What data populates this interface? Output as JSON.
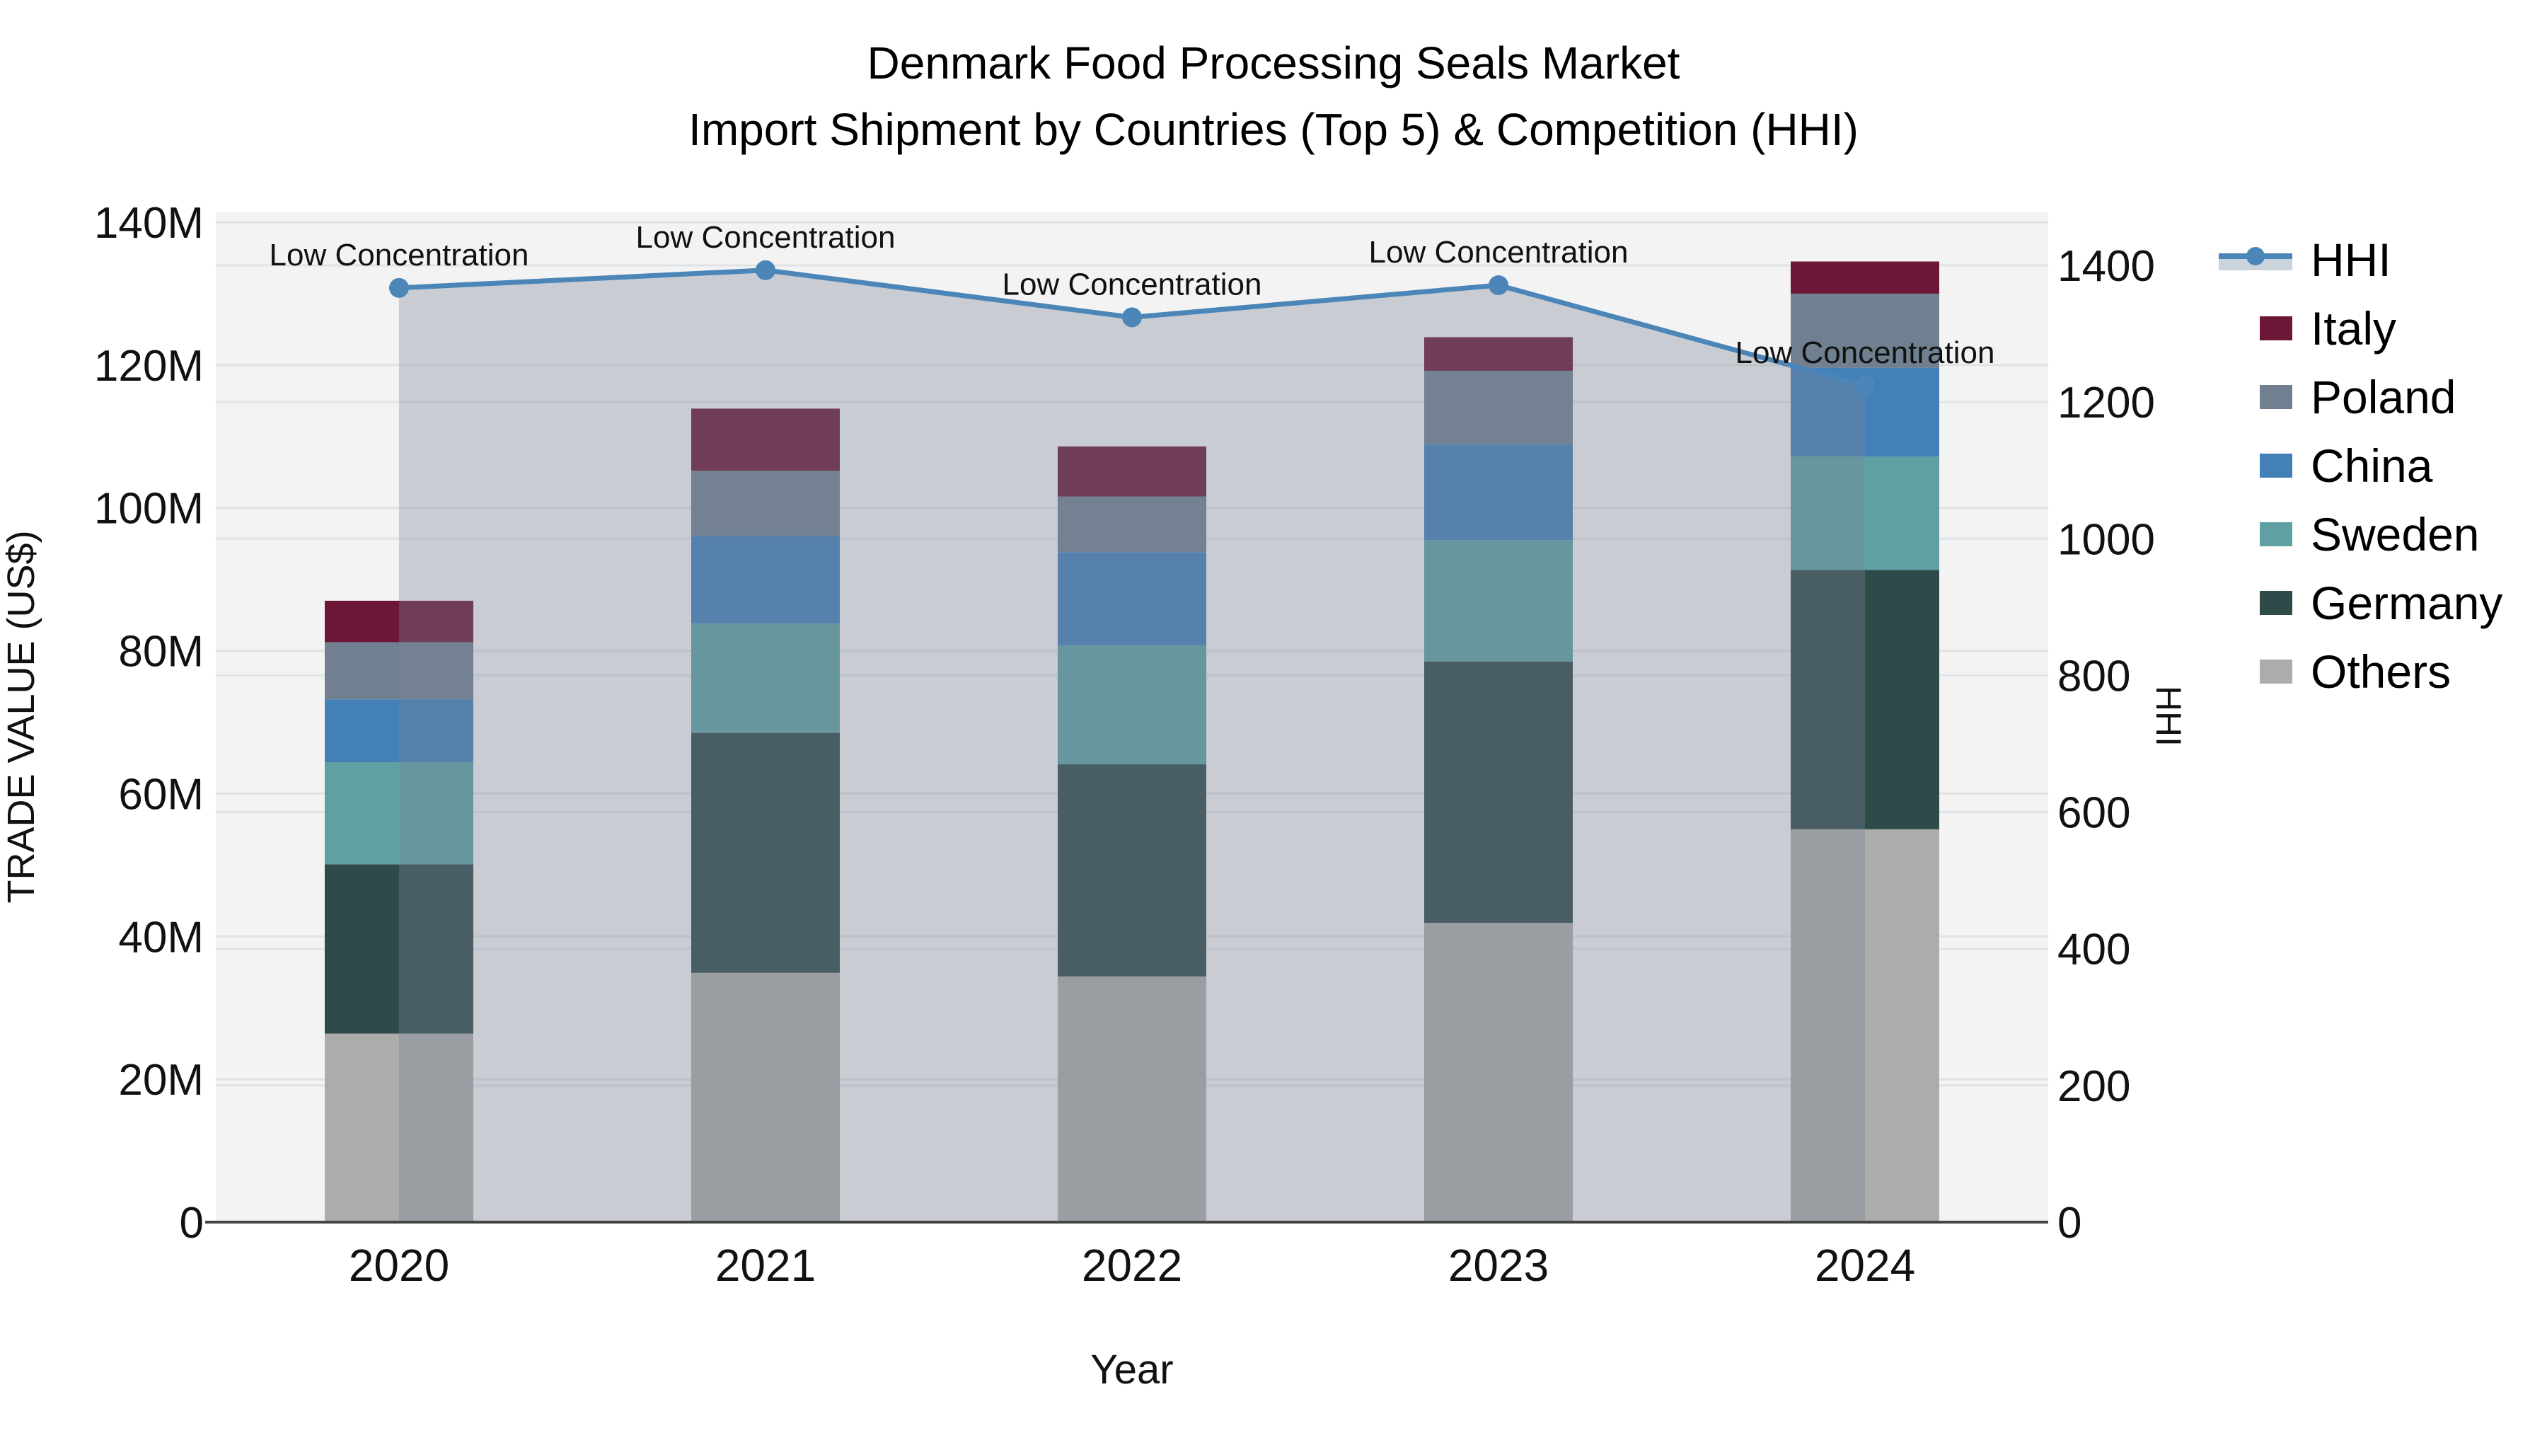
{
  "title": {
    "line1": "Denmark Food Processing Seals Market",
    "line2": "Import Shipment by Countries (Top 5) & Competition (HHI)"
  },
  "chart_data": {
    "type": "stacked-bar+line",
    "categories": [
      "2020",
      "2021",
      "2022",
      "2023",
      "2024"
    ],
    "value_unit": "M US$",
    "series": [
      {
        "name": "Others",
        "color": "#ACACAA",
        "values": [
          26.4,
          34.9,
          34.4,
          41.9,
          55.0
        ]
      },
      {
        "name": "Germany",
        "color": "#2F4B49",
        "values": [
          23.7,
          33.6,
          29.7,
          36.6,
          36.3
        ]
      },
      {
        "name": "Sweden",
        "color": "#5FA0A2",
        "values": [
          14.3,
          15.3,
          16.7,
          17.0,
          15.9
        ]
      },
      {
        "name": "China",
        "color": "#4480B8",
        "values": [
          8.8,
          12.3,
          13.0,
          13.4,
          12.4
        ]
      },
      {
        "name": "Poland",
        "color": "#708090",
        "values": [
          8.0,
          9.1,
          7.8,
          10.3,
          10.4
        ]
      },
      {
        "name": "Italy",
        "color": "#6C1737",
        "values": [
          5.8,
          8.7,
          7.0,
          4.7,
          4.5
        ]
      }
    ],
    "totals": [
      87.0,
      113.9,
      108.6,
      123.9,
      134.5
    ],
    "line_series": {
      "name": "HHI",
      "color": "#4C86B8",
      "area_fill": "#798499",
      "area_opacity": 0.35,
      "values": [
        1367,
        1393,
        1324,
        1371,
        1224
      ]
    },
    "annotations": [
      {
        "year": "2020",
        "text": "Low Concentration"
      },
      {
        "year": "2021",
        "text": "Low Concentration"
      },
      {
        "year": "2022",
        "text": "Low Concentration"
      },
      {
        "year": "2023",
        "text": "Low Concentration"
      },
      {
        "year": "2024",
        "text": "Low Concentration"
      }
    ],
    "axes": {
      "left": {
        "title": "TRADE VALUE (US$)",
        "range": [
          0,
          140
        ],
        "tick_values": [
          0,
          20,
          40,
          60,
          80,
          100,
          120,
          140
        ],
        "tick_labels": [
          "0",
          "20M",
          "40M",
          "60M",
          "80M",
          "100M",
          "120M",
          "140M"
        ]
      },
      "right": {
        "title": "HHI",
        "range": [
          0,
          1400
        ],
        "tick_values": [
          0,
          200,
          400,
          600,
          800,
          1000,
          1200,
          1400
        ],
        "tick_labels": [
          "0",
          "200",
          "400",
          "600",
          "800",
          "1000",
          "1200",
          "1400"
        ]
      },
      "x": {
        "title": "Year"
      }
    },
    "legend_order": [
      "HHI",
      "Italy",
      "Poland",
      "China",
      "Sweden",
      "Germany",
      "Others"
    ],
    "grid": true,
    "legend_position": "right"
  },
  "colors": {
    "plot_bg": "#F4F3F3",
    "grid_left": "#E2E2E2",
    "grid_right": "#E0E3E7",
    "axis_line": "#444444",
    "text": "#111111"
  }
}
